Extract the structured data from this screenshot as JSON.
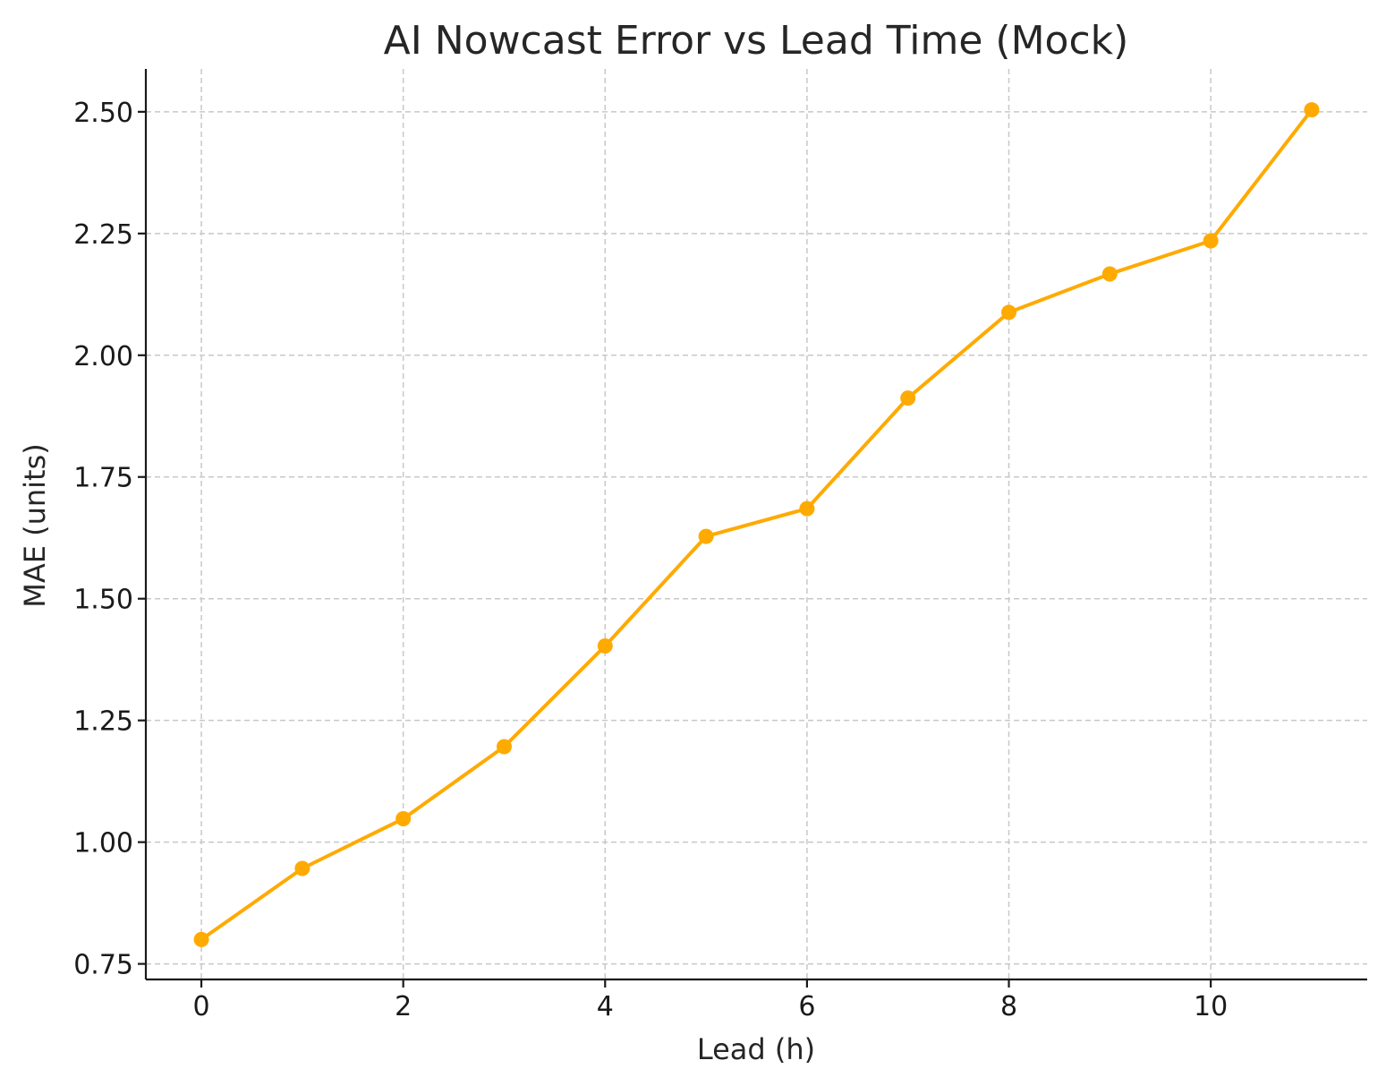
{
  "chart_data": {
    "type": "line",
    "title": "AI Nowcast Error vs Lead Time (Mock)",
    "xlabel": "Lead (h)",
    "ylabel": "MAE (units)",
    "x": [
      0,
      1,
      2,
      3,
      4,
      5,
      6,
      7,
      8,
      9,
      10,
      11
    ],
    "series": [
      {
        "name": "MAE",
        "values": [
          0.8,
          0.946,
          1.048,
          1.196,
          1.403,
          1.628,
          1.685,
          1.912,
          2.088,
          2.167,
          2.235,
          2.504
        ]
      }
    ],
    "xlim": [
      -0.55,
      11.55
    ],
    "ylim": [
      0.718,
      2.588
    ],
    "x_ticks": [
      0,
      2,
      4,
      6,
      8,
      10
    ],
    "x_tick_labels": [
      "0",
      "2",
      "4",
      "6",
      "8",
      "10"
    ],
    "y_ticks": [
      0.75,
      1.0,
      1.25,
      1.5,
      1.75,
      2.0,
      2.25,
      2.5
    ],
    "y_tick_labels": [
      "0.75",
      "1.00",
      "1.25",
      "1.50",
      "1.75",
      "2.00",
      "2.25",
      "2.50"
    ],
    "grid": true,
    "line_color": "#FFAA00",
    "marker": "circle"
  }
}
